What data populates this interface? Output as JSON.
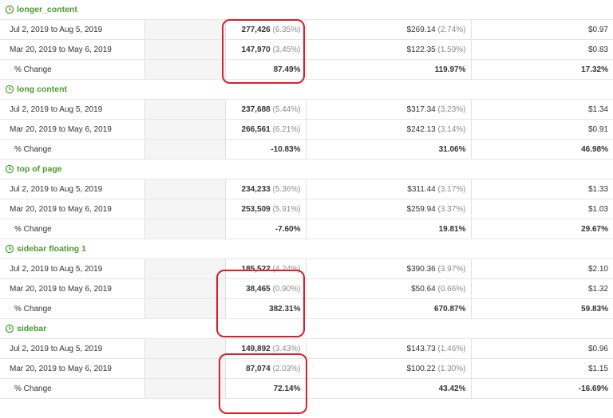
{
  "groups": [
    {
      "title": "longer_content",
      "rows": [
        {
          "range": "Jul 2, 2019 to Aug 5, 2019",
          "c1": "277,426",
          "c1_pct": "(6.35%)",
          "c2": "$269.14",
          "c2_pct": "(2.74%)",
          "c3": "$0.97"
        },
        {
          "range": "Mar 20, 2019 to May 6, 2019",
          "c1": "147,970",
          "c1_pct": "(3.45%)",
          "c2": "$122.35",
          "c2_pct": "(1.59%)",
          "c3": "$0.83"
        }
      ],
      "change": {
        "label": "% Change",
        "c1": "87.49%",
        "c2": "119.97%",
        "c3": "17.32%"
      }
    },
    {
      "title": "long content",
      "rows": [
        {
          "range": "Jul 2, 2019 to Aug 5, 2019",
          "c1": "237,688",
          "c1_pct": "(5.44%)",
          "c2": "$317.34",
          "c2_pct": "(3.23%)",
          "c3": "$1.34"
        },
        {
          "range": "Mar 20, 2019 to May 6, 2019",
          "c1": "266,561",
          "c1_pct": "(6.21%)",
          "c2": "$242.13",
          "c2_pct": "(3.14%)",
          "c3": "$0.91"
        }
      ],
      "change": {
        "label": "% Change",
        "c1": "-10.83%",
        "c2": "31.06%",
        "c3": "46.98%"
      }
    },
    {
      "title": "top of page",
      "rows": [
        {
          "range": "Jul 2, 2019 to Aug 5, 2019",
          "c1": "234,233",
          "c1_pct": "(5.36%)",
          "c2": "$311.44",
          "c2_pct": "(3.17%)",
          "c3": "$1.33"
        },
        {
          "range": "Mar 20, 2019 to May 6, 2019",
          "c1": "253,509",
          "c1_pct": "(5.91%)",
          "c2": "$259.94",
          "c2_pct": "(3.37%)",
          "c3": "$1.03"
        }
      ],
      "change": {
        "label": "% Change",
        "c1": "-7.60%",
        "c2": "19.81%",
        "c3": "29.67%"
      }
    },
    {
      "title": "sidebar floating 1",
      "rows": [
        {
          "range": "Jul 2, 2019 to Aug 5, 2019",
          "c1": "185,522",
          "c1_pct": "(4.24%)",
          "c2": "$390.36",
          "c2_pct": "(3.97%)",
          "c3": "$2.10"
        },
        {
          "range": "Mar 20, 2019 to May 6, 2019",
          "c1": "38,465",
          "c1_pct": "(0.90%)",
          "c2": "$50.64",
          "c2_pct": "(0.66%)",
          "c3": "$1.32"
        }
      ],
      "change": {
        "label": "% Change",
        "c1": "382.31%",
        "c2": "670.87%",
        "c3": "59.83%"
      }
    },
    {
      "title": "sidebar",
      "rows": [
        {
          "range": "Jul 2, 2019 to Aug 5, 2019",
          "c1": "149,892",
          "c1_pct": "(3.43%)",
          "c2": "$143.73",
          "c2_pct": "(1.46%)",
          "c3": "$0.96"
        },
        {
          "range": "Mar 20, 2019 to May 6, 2019",
          "c1": "87,074",
          "c1_pct": "(2.03%)",
          "c2": "$100.22",
          "c2_pct": "(1.30%)",
          "c3": "$1.15"
        }
      ],
      "change": {
        "label": "% Change",
        "c1": "72.14%",
        "c2": "43.42%",
        "c3": "-16.69%"
      }
    }
  ],
  "colors": {
    "group_title": "#4a9a2c",
    "highlight": "#d9202a",
    "shaded_cell": "#f5f5f5"
  },
  "icons": {
    "group_header": "clock-icon"
  }
}
